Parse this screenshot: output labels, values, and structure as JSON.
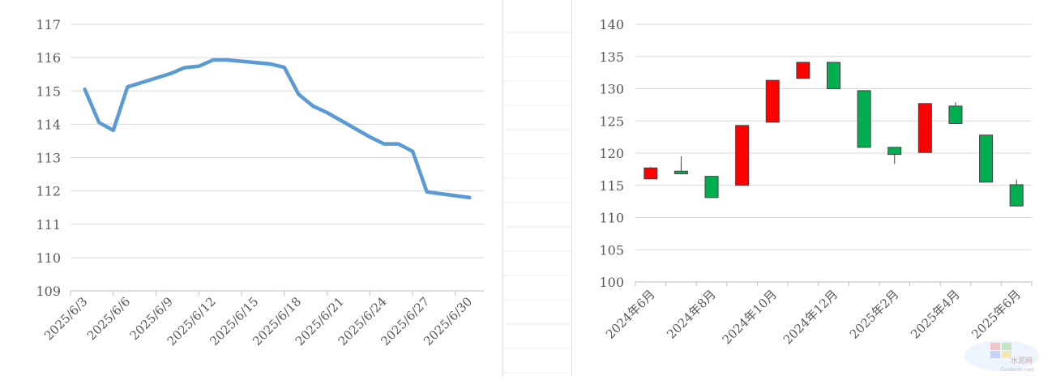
{
  "chart_data": [
    {
      "type": "line",
      "title": "",
      "xlabel": "",
      "ylabel": "",
      "ylim": [
        109,
        117
      ],
      "y_ticks": [
        "109",
        "110",
        "111",
        "112",
        "113",
        "114",
        "115",
        "116",
        "117"
      ],
      "x_tick_labels": [
        "2025/6/3",
        "2025/6/6",
        "2025/6/9",
        "2025/6/12",
        "2025/6/15",
        "2025/6/18",
        "2025/6/21",
        "2025/6/24",
        "2025/6/27",
        "2025/6/30"
      ],
      "x": [
        "2025/6/3",
        "2025/6/4",
        "2025/6/5",
        "2025/6/6",
        "2025/6/9",
        "2025/6/10",
        "2025/6/11",
        "2025/6/12",
        "2025/6/13",
        "2025/6/16",
        "2025/6/17",
        "2025/6/18",
        "2025/6/19",
        "2025/6/20",
        "2025/6/23",
        "2025/6/24",
        "2025/6/25",
        "2025/6/26",
        "2025/6/27",
        "2025/6/30"
      ],
      "series": [
        {
          "values": [
            115.05,
            114.05,
            113.82,
            115.12,
            115.52,
            115.7,
            115.74,
            115.93,
            115.93,
            115.81,
            115.71,
            114.9,
            114.55,
            114.35,
            113.62,
            113.41,
            113.41,
            113.19,
            111.97,
            111.8
          ]
        }
      ],
      "grid": true,
      "line_color": "#5b9bd5"
    },
    {
      "type": "candlestick",
      "title": "",
      "xlabel": "",
      "ylabel": "",
      "ylim": [
        100,
        140
      ],
      "y_ticks": [
        "100",
        "105",
        "110",
        "115",
        "120",
        "125",
        "130",
        "135",
        "140"
      ],
      "categories": [
        "2024年6月",
        "2024年7月",
        "2024年8月",
        "2024年9月",
        "2024年10月",
        "2024年11月",
        "2024年12月",
        "2025年1月",
        "2025年2月",
        "2025年3月",
        "2025年4月",
        "2025年5月",
        "2025年6月"
      ],
      "x_tick_labels": [
        "2024年6月",
        "2024年8月",
        "2024年10月",
        "2024年12月",
        "2025年2月",
        "2025年4月",
        "2025年6月"
      ],
      "series": [
        {
          "open": 116.0,
          "close": 117.7,
          "high": 117.9,
          "low": 116.0
        },
        {
          "open": 117.2,
          "close": 116.8,
          "high": 119.5,
          "low": 116.8
        },
        {
          "open": 116.4,
          "close": 113.1,
          "high": 116.4,
          "low": 113.1
        },
        {
          "open": 115.0,
          "close": 124.3,
          "high": 124.3,
          "low": 115.0
        },
        {
          "open": 124.8,
          "close": 131.3,
          "high": 131.3,
          "low": 124.8
        },
        {
          "open": 131.6,
          "close": 134.1,
          "high": 134.1,
          "low": 131.6
        },
        {
          "open": 134.1,
          "close": 130.0,
          "high": 134.1,
          "low": 130.0
        },
        {
          "open": 129.7,
          "close": 120.9,
          "high": 129.7,
          "low": 120.9
        },
        {
          "open": 120.9,
          "close": 119.8,
          "high": 120.9,
          "low": 118.3
        },
        {
          "open": 120.1,
          "close": 127.7,
          "high": 127.7,
          "low": 120.1
        },
        {
          "open": 127.3,
          "close": 124.6,
          "high": 127.9,
          "low": 124.6
        },
        {
          "open": 122.8,
          "close": 115.5,
          "high": 122.8,
          "low": 115.5
        },
        {
          "open": 115.1,
          "close": 111.8,
          "high": 115.9,
          "low": 111.8
        }
      ],
      "grid": true,
      "up_color": "#ff0000",
      "down_color": "#00b050"
    }
  ],
  "watermark": {
    "text": "水泥网",
    "subtext": "Ccement.com"
  }
}
